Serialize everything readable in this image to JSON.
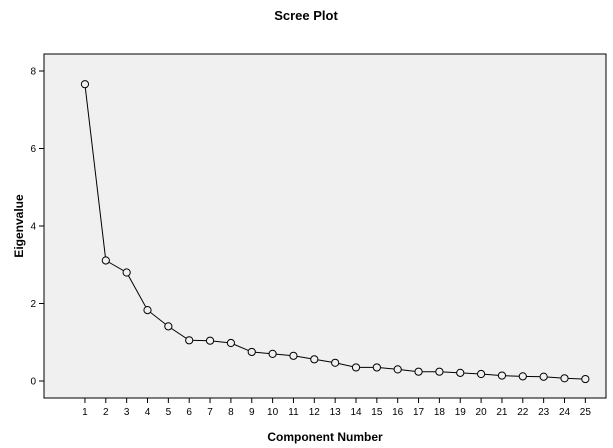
{
  "chart_data": {
    "type": "line",
    "title": "Scree Plot",
    "xlabel": "Component Number",
    "ylabel": "Eigenvalue",
    "x": [
      1,
      2,
      3,
      4,
      5,
      6,
      7,
      8,
      9,
      10,
      11,
      12,
      13,
      14,
      15,
      16,
      17,
      18,
      19,
      20,
      21,
      22,
      23,
      24,
      25
    ],
    "x_tick_labels": [
      "1",
      "2",
      "3",
      "4",
      "5",
      "6",
      "7",
      "8",
      "9",
      "10",
      "11",
      "12",
      "13",
      "14",
      "15",
      "16",
      "17",
      "18",
      "19",
      "20",
      "21",
      "22",
      "23",
      "24",
      "25"
    ],
    "series": [
      {
        "values": [
          7.66,
          3.11,
          2.8,
          1.83,
          1.41,
          1.05,
          1.04,
          0.98,
          0.75,
          0.7,
          0.65,
          0.56,
          0.47,
          0.35,
          0.35,
          0.3,
          0.24,
          0.24,
          0.21,
          0.18,
          0.14,
          0.12,
          0.11,
          0.07,
          0.05
        ],
        "marker": "open-circle",
        "color": "#000000"
      }
    ],
    "y_ticks": [
      0,
      2,
      4,
      6,
      8
    ],
    "y_tick_labels": [
      "0",
      "2",
      "4",
      "6",
      "8"
    ],
    "ylim": [
      -0.4,
      8.5
    ],
    "xlim": [
      0,
      26
    ],
    "grid": false,
    "legend": "none",
    "plot_background": "#f0f0f0"
  }
}
